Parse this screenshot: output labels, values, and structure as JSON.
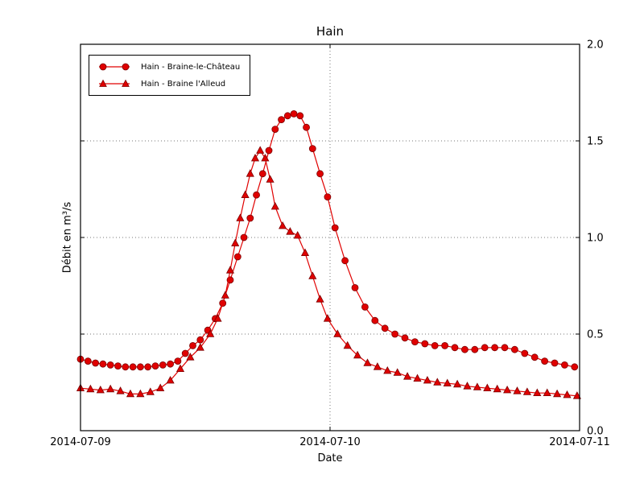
{
  "title": "Hain",
  "chart_data": {
    "type": "line",
    "title": "Hain",
    "xlabel": "Date",
    "ylabel": "Débit en m³/s",
    "x_unit": "days since 2014-07-09 00:00",
    "xlim_days": [
      0,
      2
    ],
    "ylim": [
      0.0,
      2.0
    ],
    "grid": true,
    "grid_style": "dotted",
    "legend_position": "upper-left",
    "y_tick_side": "right",
    "line_color": "#e00000",
    "marker_edge_color": "#7a0000",
    "xticks": [
      {
        "t": 0,
        "label": "2014-07-09"
      },
      {
        "t": 1,
        "label": "2014-07-10"
      },
      {
        "t": 2,
        "label": "2014-07-11"
      }
    ],
    "yticks": [
      {
        "v": 0.0,
        "label": "0.0"
      },
      {
        "v": 0.5,
        "label": "0.5"
      },
      {
        "v": 1.0,
        "label": "1.0"
      },
      {
        "v": 1.5,
        "label": "1.5"
      },
      {
        "v": 2.0,
        "label": "2.0"
      }
    ],
    "series": [
      {
        "name": "Hain - Braine-le-Château",
        "marker": "circle",
        "points": [
          [
            0.0,
            0.37
          ],
          [
            0.03,
            0.36
          ],
          [
            0.06,
            0.35
          ],
          [
            0.09,
            0.345
          ],
          [
            0.12,
            0.34
          ],
          [
            0.15,
            0.335
          ],
          [
            0.18,
            0.33
          ],
          [
            0.21,
            0.33
          ],
          [
            0.24,
            0.33
          ],
          [
            0.27,
            0.33
          ],
          [
            0.3,
            0.335
          ],
          [
            0.33,
            0.34
          ],
          [
            0.36,
            0.345
          ],
          [
            0.39,
            0.36
          ],
          [
            0.42,
            0.4
          ],
          [
            0.45,
            0.44
          ],
          [
            0.48,
            0.47
          ],
          [
            0.51,
            0.52
          ],
          [
            0.54,
            0.58
          ],
          [
            0.57,
            0.66
          ],
          [
            0.6,
            0.78
          ],
          [
            0.63,
            0.9
          ],
          [
            0.655,
            1.0
          ],
          [
            0.68,
            1.1
          ],
          [
            0.705,
            1.22
          ],
          [
            0.73,
            1.33
          ],
          [
            0.755,
            1.45
          ],
          [
            0.78,
            1.56
          ],
          [
            0.805,
            1.61
          ],
          [
            0.83,
            1.63
          ],
          [
            0.855,
            1.64
          ],
          [
            0.88,
            1.63
          ],
          [
            0.905,
            1.57
          ],
          [
            0.93,
            1.46
          ],
          [
            0.96,
            1.33
          ],
          [
            0.99,
            1.21
          ],
          [
            1.02,
            1.05
          ],
          [
            1.06,
            0.88
          ],
          [
            1.1,
            0.74
          ],
          [
            1.14,
            0.64
          ],
          [
            1.18,
            0.57
          ],
          [
            1.22,
            0.53
          ],
          [
            1.26,
            0.5
          ],
          [
            1.3,
            0.48
          ],
          [
            1.34,
            0.46
          ],
          [
            1.38,
            0.45
          ],
          [
            1.42,
            0.44
          ],
          [
            1.46,
            0.44
          ],
          [
            1.5,
            0.43
          ],
          [
            1.54,
            0.42
          ],
          [
            1.58,
            0.42
          ],
          [
            1.62,
            0.43
          ],
          [
            1.66,
            0.43
          ],
          [
            1.7,
            0.43
          ],
          [
            1.74,
            0.42
          ],
          [
            1.78,
            0.4
          ],
          [
            1.82,
            0.38
          ],
          [
            1.86,
            0.36
          ],
          [
            1.9,
            0.35
          ],
          [
            1.94,
            0.34
          ],
          [
            1.98,
            0.33
          ]
        ]
      },
      {
        "name": "Hain - Braine l'Alleud",
        "marker": "triangle",
        "points": [
          [
            0.0,
            0.22
          ],
          [
            0.04,
            0.215
          ],
          [
            0.08,
            0.21
          ],
          [
            0.12,
            0.215
          ],
          [
            0.16,
            0.205
          ],
          [
            0.2,
            0.19
          ],
          [
            0.24,
            0.19
          ],
          [
            0.28,
            0.2
          ],
          [
            0.32,
            0.22
          ],
          [
            0.36,
            0.26
          ],
          [
            0.4,
            0.32
          ],
          [
            0.44,
            0.38
          ],
          [
            0.48,
            0.43
          ],
          [
            0.52,
            0.5
          ],
          [
            0.55,
            0.58
          ],
          [
            0.58,
            0.7
          ],
          [
            0.6,
            0.83
          ],
          [
            0.62,
            0.97
          ],
          [
            0.64,
            1.1
          ],
          [
            0.66,
            1.22
          ],
          [
            0.68,
            1.33
          ],
          [
            0.7,
            1.41
          ],
          [
            0.72,
            1.45
          ],
          [
            0.74,
            1.41
          ],
          [
            0.76,
            1.3
          ],
          [
            0.78,
            1.16
          ],
          [
            0.81,
            1.06
          ],
          [
            0.84,
            1.03
          ],
          [
            0.87,
            1.01
          ],
          [
            0.9,
            0.92
          ],
          [
            0.93,
            0.8
          ],
          [
            0.96,
            0.68
          ],
          [
            0.99,
            0.58
          ],
          [
            1.03,
            0.5
          ],
          [
            1.07,
            0.44
          ],
          [
            1.11,
            0.39
          ],
          [
            1.15,
            0.35
          ],
          [
            1.19,
            0.33
          ],
          [
            1.23,
            0.31
          ],
          [
            1.27,
            0.3
          ],
          [
            1.31,
            0.28
          ],
          [
            1.35,
            0.27
          ],
          [
            1.39,
            0.26
          ],
          [
            1.43,
            0.25
          ],
          [
            1.47,
            0.245
          ],
          [
            1.51,
            0.24
          ],
          [
            1.55,
            0.23
          ],
          [
            1.59,
            0.225
          ],
          [
            1.63,
            0.22
          ],
          [
            1.67,
            0.215
          ],
          [
            1.71,
            0.21
          ],
          [
            1.75,
            0.205
          ],
          [
            1.79,
            0.2
          ],
          [
            1.83,
            0.195
          ],
          [
            1.87,
            0.195
          ],
          [
            1.91,
            0.19
          ],
          [
            1.95,
            0.185
          ],
          [
            1.99,
            0.18
          ]
        ]
      }
    ]
  }
}
